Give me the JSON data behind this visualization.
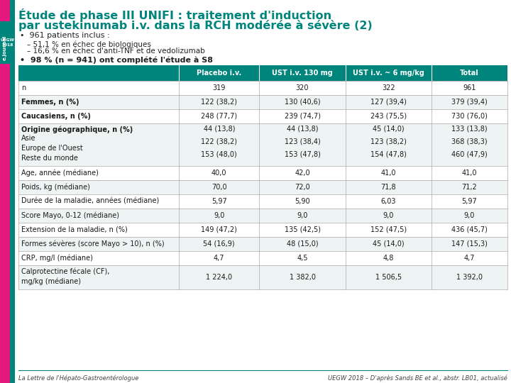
{
  "title_line1": "Étude de phase III UNIFI : traitement d'induction",
  "title_line2": "par ustekinumab i.v. dans la RCH modérée à sévère (2)",
  "title_color": "#00857C",
  "bullet1_header": "961 patients inclus :",
  "bullet1_sub1": "– 51,1 % en échec de biologiques",
  "bullet1_sub2": "– 16,6 % en échec d'anti-TNF et de vedolizumab",
  "bullet2": "98 % (n = 941) ont complété l'étude à S8",
  "header_bg": "#00857C",
  "header_text_color": "#FFFFFF",
  "col_headers": [
    "Placebo i.v.",
    "UST i.v. 130 mg",
    "UST i.v. ~ 6 mg/kg",
    "Total"
  ],
  "rows": [
    {
      "label": "n",
      "values": [
        "319",
        "320",
        "322",
        "961"
      ],
      "bold": false,
      "alt": false
    },
    {
      "label": "Femmes, n (%)",
      "values": [
        "122 (38,2)",
        "130 (40,6)",
        "127 (39,4)",
        "379 (39,4)"
      ],
      "bold": true,
      "alt": true
    },
    {
      "label": "Caucasiens, n (%)",
      "values": [
        "248 (77,7)",
        "239 (74,7)",
        "243 (75,5)",
        "730 (76,0)"
      ],
      "bold": true,
      "alt": false
    },
    {
      "label": "Origine géographique, n (%)\nAsie\nEurope de l'Ouest\nReste du monde",
      "values": [
        "44 (13,8)\n122 (38,2)\n153 (48,0)",
        "44 (13,8)\n123 (38,4)\n153 (47,8)",
        "45 (14,0)\n123 (38,2)\n154 (47,8)",
        "133 (13,8)\n368 (38,3)\n460 (47,9)"
      ],
      "bold": false,
      "alt": true,
      "multiline": true
    },
    {
      "label": "Age, année (médiane)",
      "values": [
        "40,0",
        "42,0",
        "41,0",
        "41,0"
      ],
      "bold": false,
      "alt": false
    },
    {
      "label": "Poids, kg (médiane)",
      "values": [
        "70,0",
        "72,0",
        "71,8",
        "71,2"
      ],
      "bold": false,
      "alt": true
    },
    {
      "label": "Durée de la maladie, années (médiane)",
      "values": [
        "5,97",
        "5,90",
        "6,03",
        "5,97"
      ],
      "bold": false,
      "alt": false
    },
    {
      "label": "Score Mayo, 0-12 (médiane)",
      "values": [
        "9,0",
        "9,0",
        "9,0",
        "9,0"
      ],
      "bold": false,
      "alt": true
    },
    {
      "label": "Extension de la maladie, n (%)",
      "values": [
        "149 (47,2)",
        "135 (42,5)",
        "152 (47,5)",
        "436 (45,7)"
      ],
      "bold": false,
      "alt": false
    },
    {
      "label": "Formes sévères (score Mayo > 10), n (%)",
      "values": [
        "54 (16,9)",
        "48 (15,0)",
        "45 (14,0)",
        "147 (15,3)"
      ],
      "bold": false,
      "alt": true
    },
    {
      "label": "CRP, mg/l (médiane)",
      "values": [
        "4,7",
        "4,5",
        "4,8",
        "4,7"
      ],
      "bold": false,
      "alt": false
    },
    {
      "label": "Calprotectine fécale (CF),\nmg/kg (médiane)",
      "values": [
        "1 224,0",
        "1 382,0",
        "1 506,5",
        "1 392,0"
      ],
      "bold": false,
      "alt": true,
      "multiline": true
    }
  ],
  "footer_left": "La Lettre de l'Hépato-Gastroentérologue",
  "footer_right": "UEGW 2018 – D'après Sands BE et al., abstr. LB01, actualisé",
  "sidebar_pink": "#E5197D",
  "sidebar_teal": "#00857C",
  "bg_color": "#FFFFFF",
  "border_color": "#AAAAAA",
  "alt_row_color": "#EEF4F3",
  "white_row_color": "#FFFFFF"
}
